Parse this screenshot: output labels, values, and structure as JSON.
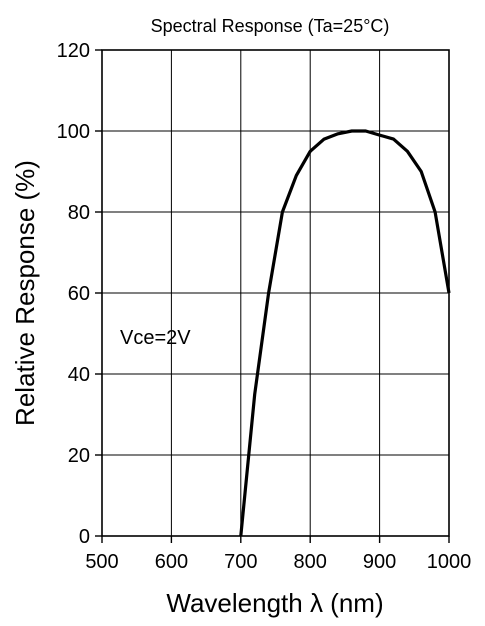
{
  "chart_data": {
    "type": "line",
    "title": "Spectral Response (Ta=25°C)",
    "xlabel": "Wavelength  λ  (nm)",
    "ylabel": "Relative Response (%)",
    "xlim": [
      500,
      1000
    ],
    "ylim": [
      0,
      120
    ],
    "xticks": [
      500,
      600,
      700,
      800,
      900,
      1000
    ],
    "yticks": [
      0,
      20,
      40,
      60,
      80,
      100,
      120
    ],
    "grid": true,
    "legend": "none",
    "annotation": "Vce=2V",
    "series": [
      {
        "x": [
          700,
          720,
          740,
          760,
          780,
          800,
          820,
          840,
          860,
          880,
          900,
          920,
          940,
          960,
          980,
          1000
        ],
        "y": [
          0,
          35,
          60,
          80,
          89,
          95,
          98,
          99.3,
          100,
          100,
          99,
          98,
          95,
          90,
          80,
          60
        ]
      }
    ]
  }
}
